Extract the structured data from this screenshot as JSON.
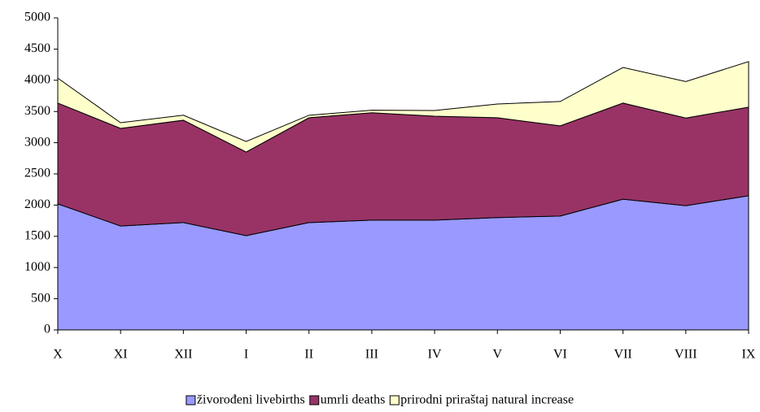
{
  "chart_data": {
    "type": "stacked-area",
    "categories": [
      "X",
      "XI",
      "XII",
      "I",
      "II",
      "III",
      "IV",
      "V",
      "VI",
      "VII",
      "VIII",
      "IX"
    ],
    "series": [
      {
        "name": "živorođeni livebirths",
        "color": "#9999ff",
        "values": [
          2020,
          1665,
          1720,
          1510,
          1720,
          1760,
          1760,
          1800,
          1825,
          2095,
          1990,
          2150
        ]
      },
      {
        "name": "umrli deaths",
        "color": "#993366",
        "values": [
          1615,
          1565,
          1640,
          1340,
          1680,
          1720,
          1665,
          1600,
          1445,
          1540,
          1405,
          1420
        ]
      },
      {
        "name": "prirodni priraštaj natural increase",
        "color": "#ffffcc",
        "values": [
          400,
          90,
          80,
          170,
          40,
          40,
          90,
          220,
          390,
          570,
          585,
          730
        ]
      }
    ],
    "ylim": [
      0,
      5000
    ],
    "yticks": [
      0,
      500,
      1000,
      1500,
      2000,
      2500,
      3000,
      3500,
      4000,
      4500,
      5000
    ],
    "legend": "bottom"
  }
}
